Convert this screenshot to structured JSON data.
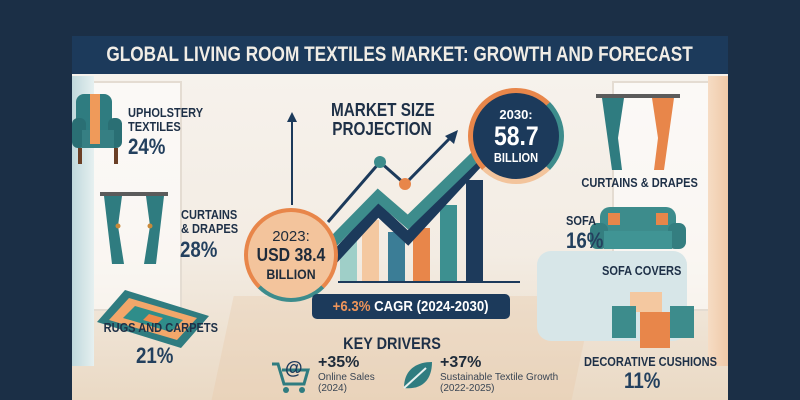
{
  "title": "GLOBAL LIVING ROOM TEXTILES MARKET: GROWTH AND FORECAST",
  "segments": [
    {
      "label_1": "UPHOLSTERY",
      "label_2": "TEXTILES",
      "value": "24%",
      "icon": "armchair-icon"
    },
    {
      "label_1": "CURTAINS",
      "label_2": "& DRAPES",
      "value": "28%",
      "icon": "curtain-icon"
    },
    {
      "label": "RUGS AND CARPETS",
      "value": "21%",
      "icon": "rug-icon"
    },
    {
      "label": "CURTAINS & DRAPES",
      "icon": "curtain-icon"
    },
    {
      "label": "SOFA",
      "value": "16%",
      "icon": "sofa-icon"
    },
    {
      "label": "SOFA COVERS"
    },
    {
      "label": "DECORATIVE CUSHIONS",
      "value": "11%",
      "icon": "cushions-icon"
    }
  ],
  "projection": {
    "heading_1": "MARKET SIZE",
    "heading_2": "PROJECTION",
    "start": {
      "year": "2023:",
      "value": "USD 38.4",
      "unit": "BILLION"
    },
    "end": {
      "year": "2030:",
      "value": "58.7",
      "unit": "BILLION"
    },
    "cagr_value": "+6.3%",
    "cagr_label": "CAGR (2024-2030)",
    "bar_colors": [
      "#9fcfc8",
      "#f4c8a0",
      "#3b7d96",
      "#e8864a",
      "#3d9090",
      "#1d3a5b"
    ]
  },
  "drivers": {
    "heading": "KEY DRIVERS",
    "items": [
      {
        "value": "+35%",
        "label": "Online Sales",
        "period": "(2024)",
        "icon": "shopping-cart-icon"
      },
      {
        "value": "+37%",
        "label": "Sustainable Textile Growth",
        "period": "(2022-2025)",
        "icon": "leaf-icon"
      }
    ]
  },
  "colors": {
    "navy": "#1c3a5b",
    "teal": "#3d8c8c",
    "orange": "#e8864a",
    "peach": "#f4c8a0"
  }
}
